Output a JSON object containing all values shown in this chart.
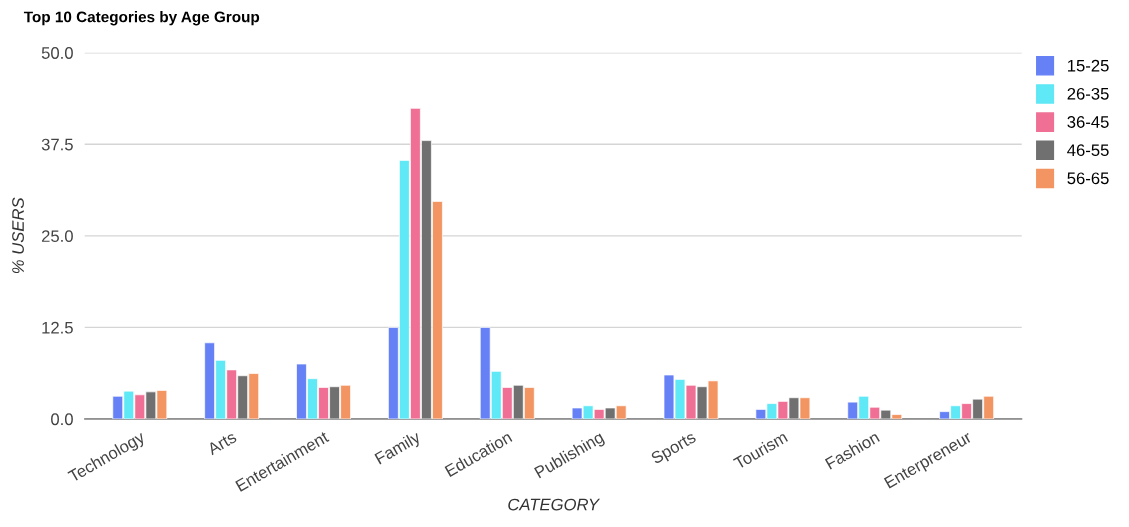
{
  "chart_data": {
    "type": "bar",
    "title": "Top 10 Categories by Age Group",
    "xlabel": "CATEGORY",
    "ylabel": "% USERS",
    "categories": [
      "Technology",
      "Arts",
      "Entertainment",
      "Family",
      "Education",
      "Publishing",
      "Sports",
      "Tourism",
      "Fashion",
      "Enterpreneur"
    ],
    "series": [
      {
        "name": "15-25",
        "color": "#6680f5",
        "values": [
          3.1,
          10.4,
          7.5,
          12.5,
          12.5,
          1.5,
          6.0,
          1.3,
          2.3,
          1.0
        ]
      },
      {
        "name": "26-35",
        "color": "#5fe8f5",
        "values": [
          3.8,
          8.0,
          5.5,
          35.3,
          6.5,
          1.8,
          5.4,
          2.1,
          3.1,
          1.8
        ]
      },
      {
        "name": "36-45",
        "color": "#f07095",
        "values": [
          3.3,
          6.7,
          4.3,
          42.4,
          4.3,
          1.3,
          4.6,
          2.4,
          1.6,
          2.1
        ]
      },
      {
        "name": "46-55",
        "color": "#707070",
        "values": [
          3.7,
          5.9,
          4.4,
          38.0,
          4.6,
          1.5,
          4.4,
          2.9,
          1.2,
          2.7
        ]
      },
      {
        "name": "56-65",
        "color": "#f39562",
        "values": [
          3.9,
          6.2,
          4.6,
          29.7,
          4.3,
          1.8,
          5.2,
          2.9,
          0.6,
          3.1
        ]
      }
    ],
    "ylim": [
      0,
      50
    ],
    "yticks": [
      {
        "value": 0,
        "label": "0.0"
      },
      {
        "value": 12.5,
        "label": "12.5"
      },
      {
        "value": 25,
        "label": "25.0"
      },
      {
        "value": 37.5,
        "label": "37.5"
      },
      {
        "value": 50,
        "label": "50.0"
      }
    ],
    "grid": "y",
    "legend": "top right"
  }
}
